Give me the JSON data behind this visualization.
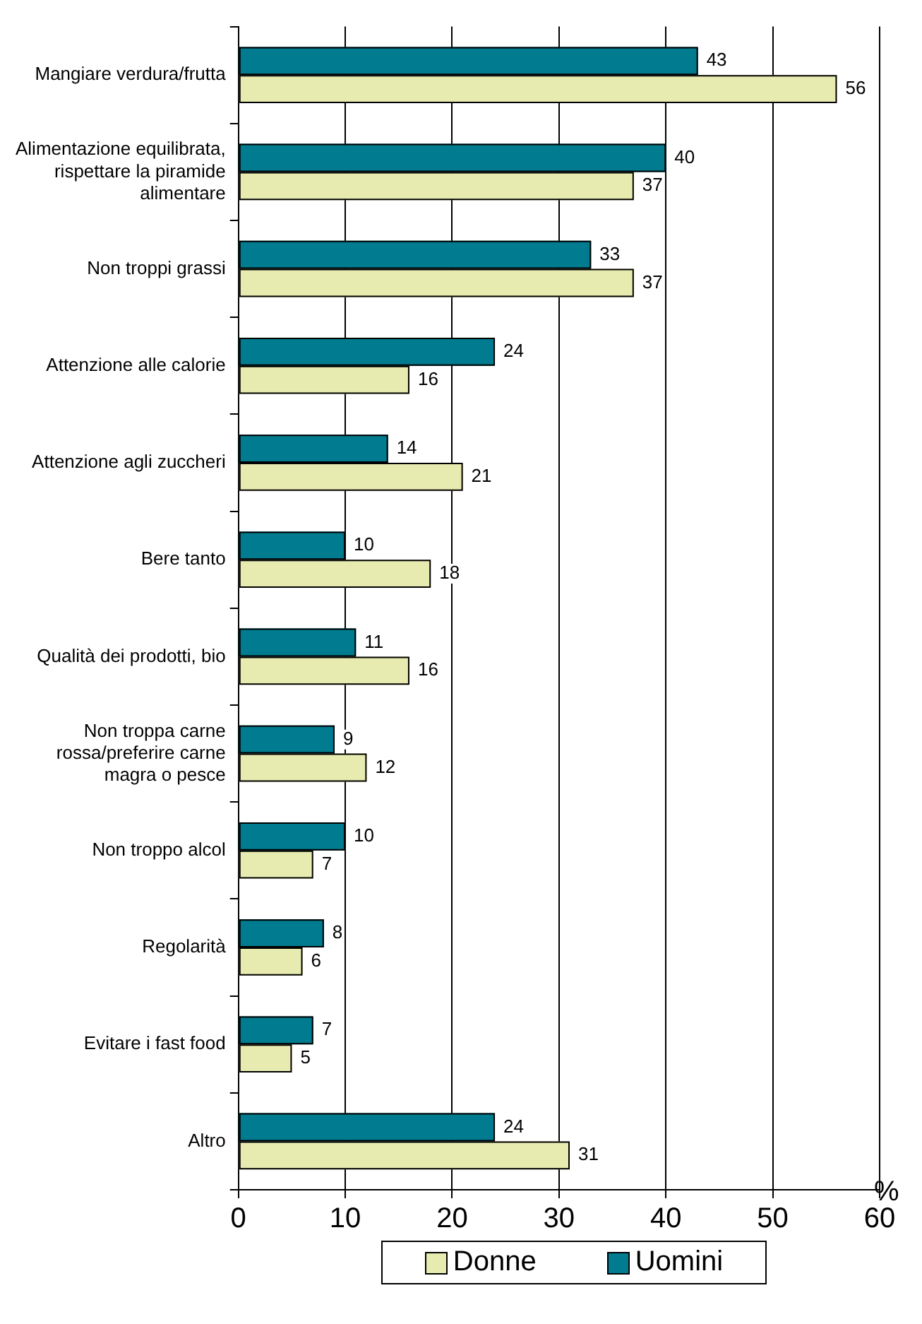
{
  "chart_data": {
    "type": "bar",
    "orientation": "horizontal",
    "xlabel": "%",
    "categories": [
      "Mangiare verdura/frutta",
      "Alimentazione equilibrata, rispettare la piramide alimentare",
      "Non troppi grassi",
      "Attenzione alle calorie",
      "Attenzione agli zuccheri",
      "Bere tanto",
      "Qualità dei prodotti, bio",
      "Non troppa carne rossa/preferire carne magra o pesce",
      "Non troppo alcol",
      "Regolarità",
      "Evitare i fast food",
      "Altro"
    ],
    "series": [
      {
        "name": "Uomini",
        "color": "#007b8f",
        "values": [
          43,
          40,
          33,
          24,
          14,
          10,
          11,
          9,
          10,
          8,
          7,
          24
        ]
      },
      {
        "name": "Donne",
        "color": "#e8ebb0",
        "values": [
          56,
          37,
          37,
          16,
          21,
          18,
          16,
          12,
          7,
          6,
          5,
          31
        ]
      }
    ],
    "xlim": [
      0,
      60
    ],
    "xticks": [
      0,
      10,
      20,
      30,
      40,
      50,
      60
    ],
    "grid": "x",
    "legend": "bottom",
    "data_labels": true
  }
}
